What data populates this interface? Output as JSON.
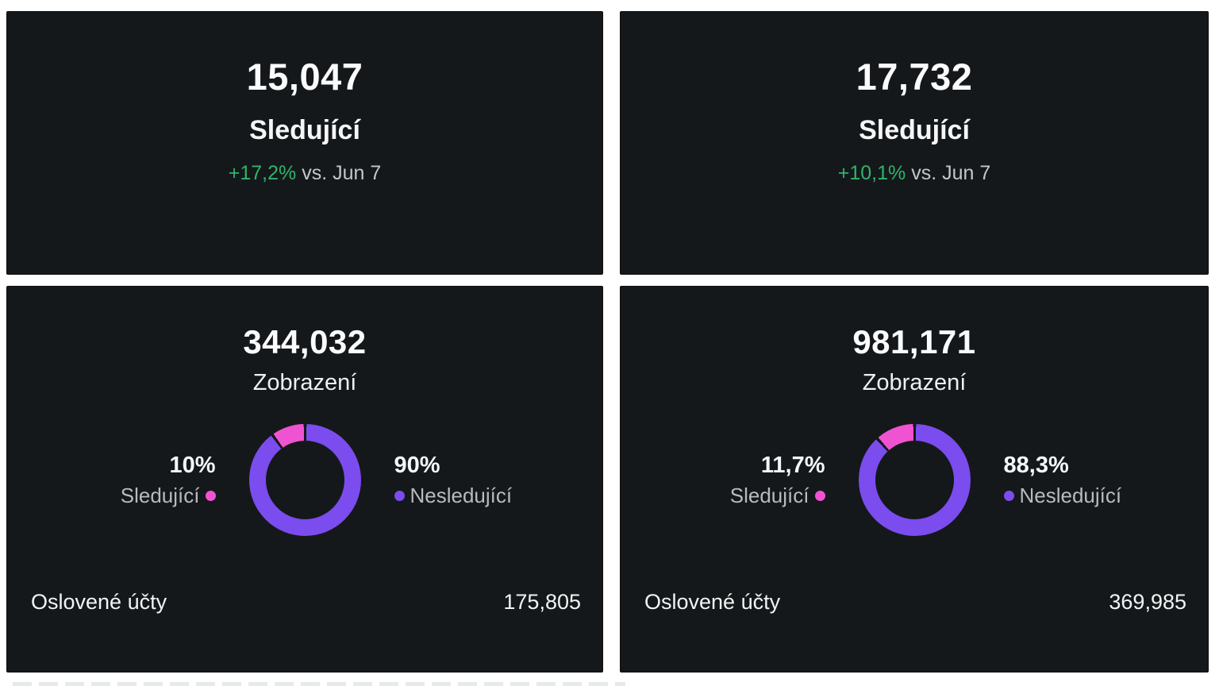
{
  "page": {
    "background": "#ffffff"
  },
  "colors": {
    "card_bg": "#15181a",
    "text_primary": "#fafbfc",
    "text_muted": "#c3c7ca",
    "legend_label": "#b7bbbf",
    "green": "#2eb46c",
    "pink": "#f053d2",
    "purple": "#7b4cee"
  },
  "top_cards": [
    {
      "value": "15,047",
      "label": "Sledující",
      "delta": "+17,2%",
      "delta_context": "vs. Jun 7"
    },
    {
      "value": "17,732",
      "label": "Sledující",
      "delta": "+10,1%",
      "delta_context": "vs. Jun 7"
    }
  ],
  "chart_data": [
    {
      "type": "pie",
      "variant": "donut",
      "title": "344,032",
      "subtitle": "Zobrazení",
      "slices": [
        {
          "label": "Sledující",
          "display": "10%",
          "pct": 10,
          "color": "#f053d2"
        },
        {
          "label": "Nesledující",
          "display": "90%",
          "pct": 90,
          "color": "#7b4cee"
        }
      ],
      "footer": {
        "label": "Oslovené účty",
        "value": "175,805"
      }
    },
    {
      "type": "pie",
      "variant": "donut",
      "title": "981,171",
      "subtitle": "Zobrazení",
      "slices": [
        {
          "label": "Sledující",
          "display": "11,7%",
          "pct": 11.7,
          "color": "#f053d2"
        },
        {
          "label": "Nesledující",
          "display": "88,3%",
          "pct": 88.3,
          "color": "#7b4cee"
        }
      ],
      "footer": {
        "label": "Oslovené účty",
        "value": "369,985"
      }
    }
  ]
}
